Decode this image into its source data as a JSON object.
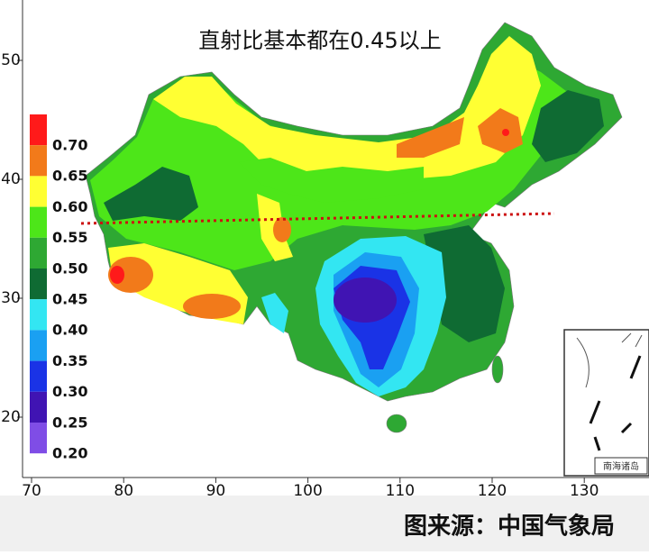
{
  "title": "直射比基本都在0.45以上",
  "xticks": [
    70,
    80,
    90,
    100,
    110,
    120,
    130
  ],
  "yticks": [
    50,
    40,
    30,
    20
  ],
  "legend": {
    "labels": [
      "0.70",
      "0.65",
      "0.60",
      "0.55",
      "0.50",
      "0.45",
      "0.40",
      "0.35",
      "0.30",
      "0.25",
      "0.20"
    ],
    "colors": [
      "#ff1a1a",
      "#f27a1a",
      "#ffff33",
      "#4de619",
      "#2ea833",
      "#0f6b33",
      "#33e6f2",
      "#1aa0f2",
      "#1a33e6",
      "#4014b3",
      "#7f4de6"
    ]
  },
  "inset_label": "南海诸岛",
  "source": "图来源：中国气象局"
}
